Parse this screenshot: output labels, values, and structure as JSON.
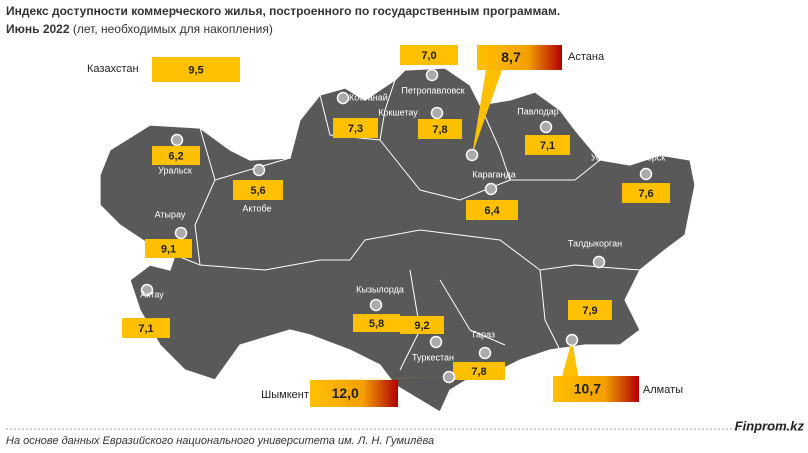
{
  "header": {
    "title": "Индекс доступности коммерческого жилья, построенного по государственным программам.",
    "period": "Июнь 2022",
    "subtitle": "(лет, необходимых для накопления)"
  },
  "country": {
    "name": "Казахстан",
    "value": 9.5,
    "label": "9,5"
  },
  "cities": [
    {
      "name": "Костанай",
      "value": 7.3,
      "label": "7,3"
    },
    {
      "name": "Петропавловск",
      "value": 7.0,
      "label": "7,0"
    },
    {
      "name": "Кокшетау",
      "value": 7.8,
      "label": "7,8"
    },
    {
      "name": "Астана",
      "value": 8.7,
      "label": "8,7",
      "highlight": true
    },
    {
      "name": "Павлодар",
      "value": 7.1,
      "label": "7,1"
    },
    {
      "name": "Усть-Каменогорск",
      "value": 7.6,
      "label": "7,6"
    },
    {
      "name": "Караганда",
      "value": 6.4,
      "label": "6,4"
    },
    {
      "name": "Уральск",
      "value": 6.2,
      "label": "6,2"
    },
    {
      "name": "Актобе",
      "value": 5.6,
      "label": "5,6"
    },
    {
      "name": "Атырау",
      "value": 9.1,
      "label": "9,1"
    },
    {
      "name": "Актау",
      "value": 7.1,
      "label": "7,1"
    },
    {
      "name": "Кызылорда",
      "value": 5.8,
      "label": "5,8"
    },
    {
      "name": "Туркестан",
      "value": 9.2,
      "label": "9,2"
    },
    {
      "name": "Тараз",
      "value": 7.8,
      "label": "7,8"
    },
    {
      "name": "Шымкент",
      "value": 12.0,
      "label": "12,0",
      "highlight": true
    },
    {
      "name": "Талдыкорган",
      "value": 7.9,
      "label": "7,9"
    },
    {
      "name": "Алматы",
      "value": 10.7,
      "label": "10,7",
      "highlight": true
    }
  ],
  "footer": {
    "source": "На основе данных Евразийского национального университета им. Л. Н. Гумилёва",
    "brand": "Finprom.kz"
  }
}
